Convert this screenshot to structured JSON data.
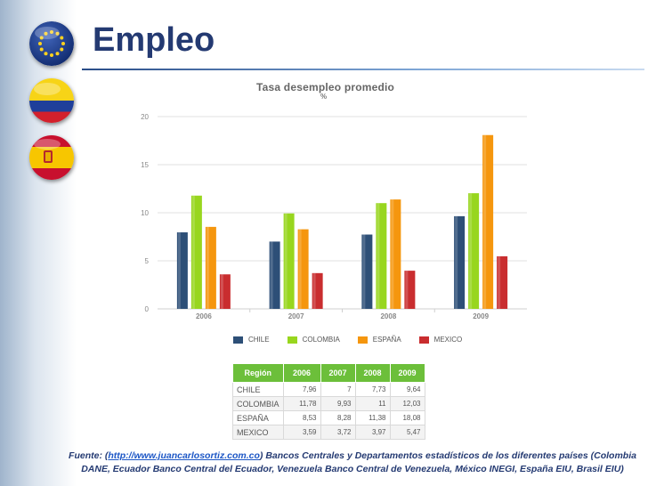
{
  "title": "Empleo",
  "flags": [
    "eu-flag-icon",
    "colombia-flag-icon",
    "spain-flag-icon"
  ],
  "chart_data": {
    "type": "bar",
    "title": "Tasa desempleo promedio",
    "unit": "%",
    "categories": [
      "2006",
      "2007",
      "2008",
      "2009"
    ],
    "ylim": [
      0,
      20
    ],
    "yticks": [
      "0",
      "5",
      "10",
      "15",
      "20"
    ],
    "grid": true,
    "legend_position": "bottom",
    "series": [
      {
        "name": "CHILE",
        "color": "#2d4f77",
        "values": [
          7.96,
          7,
          7.73,
          9.64
        ]
      },
      {
        "name": "COLOMBIA",
        "color": "#98d61e",
        "values": [
          11.78,
          9.93,
          11,
          12.03
        ]
      },
      {
        "name": "ESPAÑA",
        "color": "#f5960e",
        "values": [
          8.53,
          8.28,
          11.38,
          18.08
        ]
      },
      {
        "name": "MEXICO",
        "color": "#c92d2f",
        "values": [
          3.59,
          3.72,
          3.97,
          5.47
        ]
      }
    ]
  },
  "table": {
    "headers": [
      "Región",
      "2006",
      "2007",
      "2008",
      "2009"
    ],
    "rows": [
      [
        "CHILE",
        "7,96",
        "7",
        "7,73",
        "9,64"
      ],
      [
        "COLOMBIA",
        "11,78",
        "9,93",
        "11",
        "12,03"
      ],
      [
        "ESPAÑA",
        "8,53",
        "8,28",
        "11,38",
        "18,08"
      ],
      [
        "MEXICO",
        "3,59",
        "3,72",
        "3,97",
        "5,47"
      ]
    ]
  },
  "footer": {
    "prefix": "Fuente: (",
    "link": "http://www.juancarlosortiz.com.co",
    "line1_rest": ") Bancos Centrales y Departamentos estadísticos de los diferentes países (Colombia",
    "line2": "DANE, Ecuador Banco Central del Ecuador, Venezuela Banco Central de Venezuela, México INEGI, España EIU, Brasil EIU)"
  }
}
